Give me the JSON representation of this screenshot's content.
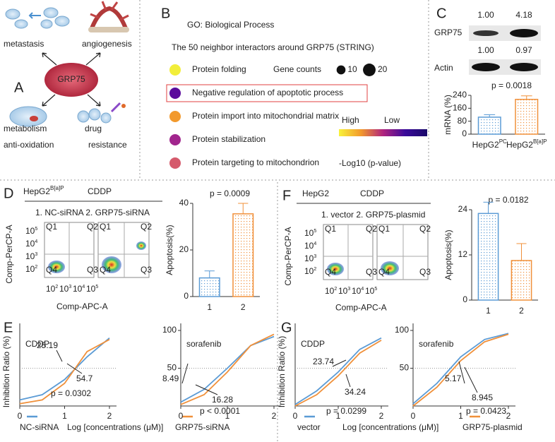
{
  "panel_a": {
    "label": "A",
    "center": "GRP75",
    "outcomes": [
      "metastasis",
      "angiogenesis",
      "metabolism",
      "anti-oxidation",
      "drug",
      "resistance"
    ]
  },
  "panel_b": {
    "label": "B",
    "title": "GO: Biological Process",
    "subtitle": "The 50 neighbor interactors around GRP75 (STRING)",
    "terms": [
      {
        "name": "Protein folding",
        "color": "#f2ee3a"
      },
      {
        "name": "Negative regulation of apoptotic process",
        "color": "#5b0b9c"
      },
      {
        "name": "Protein import into mitochondrial matrix",
        "color": "#f2992c"
      },
      {
        "name": "Protein stabilization",
        "color": "#a1258d"
      },
      {
        "name": "Protein targeting to mitochondrion",
        "color": "#d55a6c"
      }
    ],
    "gene_counts": {
      "label": "Gene counts",
      "sizes": [
        10,
        20
      ]
    },
    "scale": {
      "high": "High",
      "low": "Low",
      "label": "-Log10 (p-value)",
      "colors": [
        "#f8f23a",
        "#f2992c",
        "#b0237e",
        "#3a0a9a",
        "#1a0a6a"
      ]
    }
  },
  "panel_c": {
    "label": "C",
    "blot": [
      {
        "protein": "GRP75",
        "ratios": [
          "1.00",
          "4.18"
        ]
      },
      {
        "protein": "Actin",
        "ratios": [
          "1.00",
          "0.97"
        ]
      }
    ]
  },
  "panel_d": {
    "label": "D",
    "cell": "HepG2",
    "cell_sup": "B[a]P",
    "drug": "CDDP",
    "groups": "1. NC-siRNA 2. GRP75-siRNA",
    "ylabel": "Comp-PerCP-A",
    "xlabel": "Comp-APC-A",
    "flow_base": "10",
    "flow_exps": [
      "2",
      "3",
      "4",
      "5"
    ],
    "quadrants": [
      "Q1",
      "Q2",
      "Q3",
      "Q4"
    ]
  },
  "panel_e": {
    "label": "E"
  },
  "panel_f": {
    "label": "F",
    "cell": "HepG2",
    "drug": "CDDP",
    "groups": "1. vector  2. GRP75-plasmid",
    "ylabel": "Comp-PerCP-A",
    "xlabel": "Comp-APC-A",
    "flow_base": "10",
    "flow_exps": [
      "2",
      "3",
      "4",
      "5"
    ],
    "quadrants": [
      "Q1",
      "Q2",
      "Q3",
      "Q4"
    ]
  },
  "panel_g": {
    "label": "G"
  },
  "chart_data": [
    {
      "type": "bar",
      "ylabel": "mRNA (%)",
      "annotation": "p = 0.0018",
      "categories": [
        "HepG2",
        "HepG2"
      ],
      "category_superscripts": [
        "PC",
        "B[a]P"
      ],
      "values": [
        105,
        215
      ],
      "errors": [
        15,
        22
      ],
      "colors": [
        "#5b9bd5",
        "#f0903a"
      ],
      "ylim": [
        0,
        240
      ],
      "yticks": [
        0,
        80,
        160,
        240
      ]
    },
    {
      "type": "bar",
      "ylabel": "Apoptosis(%)",
      "annotation": "p = 0.0009",
      "categories": [
        "1",
        "2"
      ],
      "values": [
        8,
        35.5
      ],
      "errors": [
        3,
        4.5
      ],
      "colors": [
        "#5b9bd5",
        "#f0903a"
      ],
      "ylim": [
        0,
        40
      ],
      "yticks": [
        0,
        20,
        40
      ]
    },
    {
      "type": "bar",
      "ylabel": "Apoptosis(%)",
      "annotation": "p = 0.0182",
      "categories": [
        "1",
        "2"
      ],
      "values": [
        23,
        10.5
      ],
      "errors": [
        3,
        4.5
      ],
      "colors": [
        "#5b9bd5",
        "#f0903a"
      ],
      "ylim": [
        0,
        24
      ],
      "yticks": [
        0,
        12,
        24
      ]
    },
    {
      "type": "line",
      "title": "CDDP",
      "ylabel": "Inhibition Ratio (%)",
      "xlabel": "Log [concentrations (μM)]",
      "x": [
        0,
        0.5,
        1,
        1.5,
        2
      ],
      "series": [
        {
          "name": "NC-siRNA",
          "color": "#5b9bd5",
          "values": [
            8,
            15,
            35,
            65,
            90
          ]
        },
        {
          "name": "GRP75-siRNA",
          "color": "#f0903a",
          "values": [
            3,
            8,
            30,
            72,
            88
          ]
        }
      ],
      "annotations": [
        "25.19",
        "54.7",
        "p = 0.0302"
      ],
      "xlim": [
        0,
        2
      ],
      "ylim": [
        0,
        100
      ],
      "xticks": [
        0,
        1,
        2
      ],
      "hline": 50
    },
    {
      "type": "line",
      "title": "sorafenib",
      "x": [
        0,
        0.5,
        1,
        1.5,
        2
      ],
      "series": [
        {
          "color": "#5b9bd5",
          "values": [
            5,
            22,
            50,
            80,
            92
          ]
        },
        {
          "color": "#f0903a",
          "values": [
            2,
            15,
            45,
            80,
            95
          ]
        }
      ],
      "annotations": [
        "8.49",
        "16.28",
        "p < 0.0001"
      ],
      "xlim": [
        0,
        2
      ],
      "ylim": [
        0,
        100
      ],
      "xticks": [
        0,
        1,
        2
      ],
      "yticks": [
        50,
        100
      ],
      "hline": 50
    },
    {
      "type": "line",
      "title": "CDDP",
      "ylabel": "Inhibition Ratio (%)",
      "xlabel": "Log [concentrations (μM)]",
      "x": [
        0,
        0.5,
        1,
        1.5,
        2
      ],
      "series": [
        {
          "name": "vector",
          "color": "#5b9bd5",
          "values": [
            2,
            20,
            45,
            75,
            90
          ]
        },
        {
          "name": "GRP75-plasmid",
          "color": "#f0903a",
          "values": [
            0,
            15,
            40,
            70,
            87
          ]
        }
      ],
      "annotations": [
        "23.74",
        "34.24",
        "p = 0.0299"
      ],
      "xlim": [
        0,
        2
      ],
      "ylim": [
        0,
        100
      ],
      "xticks": [
        0,
        1,
        2
      ],
      "hline": 50
    },
    {
      "type": "line",
      "title": "sorafenib",
      "x": [
        0,
        0.5,
        1,
        1.5,
        2
      ],
      "series": [
        {
          "color": "#5b9bd5",
          "values": [
            3,
            30,
            65,
            88,
            96
          ]
        },
        {
          "color": "#f0903a",
          "values": [
            0,
            25,
            60,
            85,
            95
          ]
        }
      ],
      "annotations": [
        "5.17",
        "8.945",
        "p = 0.0423"
      ],
      "xlim": [
        0,
        2
      ],
      "ylim": [
        0,
        100
      ],
      "xticks": [
        0,
        1,
        2
      ],
      "yticks": [
        50,
        100
      ],
      "hline": 50
    }
  ]
}
